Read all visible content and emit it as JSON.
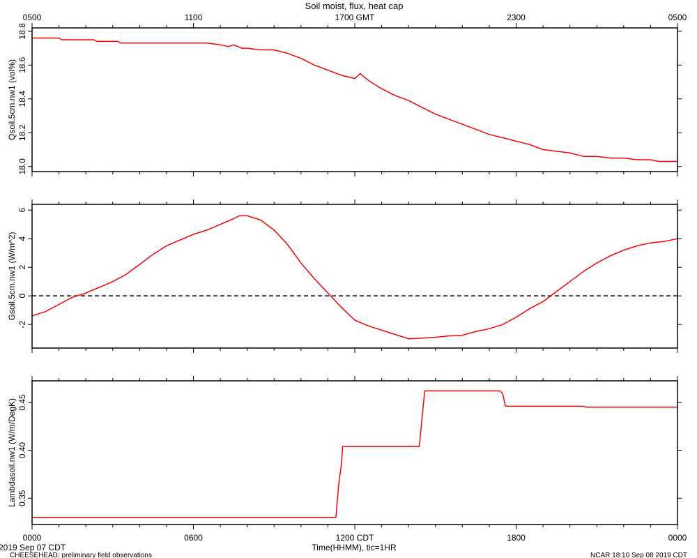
{
  "header": {
    "title": "Soil moist, flux, heat cap",
    "top_ticks": [
      "0500",
      "1100",
      "1700 GMT",
      "2300",
      "0500"
    ]
  },
  "bottom_axis": {
    "ticks": [
      "0000",
      "0600",
      "1200 CDT",
      "1800",
      "0000"
    ],
    "xlabel": "Time(HHMM), tic=1HR"
  },
  "footer": {
    "date": "2019 Sep 07 CDT",
    "project": "CHEESEHEAD: preliminary field observations",
    "credit": "NCAR 18:10 Sep 08 2019 CDT"
  },
  "colors": {
    "series": "#ff0000",
    "axis": "#000000",
    "background": "#ffffff"
  },
  "chart_data": [
    {
      "type": "line",
      "ylabel": "Qsoil.5cm.nw1 (vol%)",
      "ylim": [
        17.97,
        18.82
      ],
      "yticks": [
        18.0,
        18.2,
        18.4,
        18.6,
        18.8
      ],
      "ytick_labels": [
        "18.0",
        "18.2",
        "18.4",
        "18.6",
        "18.8"
      ],
      "xlim": [
        0,
        24
      ],
      "x": [
        0,
        1.0,
        1.1,
        2.3,
        2.4,
        3.2,
        3.3,
        4.2,
        4.3,
        5.0,
        6.0,
        6.5,
        7.0,
        7.3,
        7.5,
        7.8,
        8.0,
        8.5,
        9.0,
        9.5,
        10.0,
        10.5,
        11.0,
        11.5,
        12.0,
        12.2,
        12.5,
        13.0,
        13.5,
        14.0,
        14.5,
        15.0,
        15.5,
        16.0,
        16.5,
        17.0,
        17.5,
        18.0,
        18.5,
        19.0,
        19.5,
        20.0,
        20.5,
        21.0,
        21.5,
        22.0,
        22.5,
        23.0,
        23.3,
        24.0
      ],
      "y": [
        18.76,
        18.76,
        18.75,
        18.75,
        18.74,
        18.74,
        18.73,
        18.73,
        18.73,
        18.73,
        18.73,
        18.73,
        18.72,
        18.71,
        18.72,
        18.7,
        18.7,
        18.69,
        18.69,
        18.67,
        18.64,
        18.6,
        18.57,
        18.54,
        18.52,
        18.55,
        18.51,
        18.46,
        18.42,
        18.39,
        18.35,
        18.31,
        18.28,
        18.25,
        18.22,
        18.19,
        18.17,
        18.15,
        18.13,
        18.1,
        18.09,
        18.08,
        18.06,
        18.06,
        18.05,
        18.05,
        18.04,
        18.04,
        18.03,
        18.03
      ]
    },
    {
      "type": "line",
      "ylabel": "Gsoil.5cm.nw1 (W/m^2)",
      "ylim": [
        -3.65,
        6.4
      ],
      "yticks": [
        -2,
        0,
        2,
        4,
        6
      ],
      "ytick_labels": [
        "-2",
        "0",
        "2",
        "4",
        "6"
      ],
      "reference_line": {
        "y": 0,
        "style": "dashed"
      },
      "xlim": [
        0,
        24
      ],
      "x": [
        0,
        0.5,
        1.0,
        1.5,
        2.0,
        2.5,
        3.0,
        3.5,
        4.0,
        4.5,
        5.0,
        5.5,
        6.0,
        6.5,
        7.0,
        7.5,
        7.7,
        8.0,
        8.5,
        9.0,
        9.5,
        10.0,
        10.5,
        11.0,
        11.5,
        12.0,
        12.5,
        13.0,
        13.5,
        14.0,
        14.5,
        15.0,
        15.5,
        16.0,
        16.5,
        17.0,
        17.5,
        18.0,
        18.5,
        19.0,
        19.5,
        20.0,
        20.5,
        21.0,
        21.5,
        22.0,
        22.5,
        23.0,
        23.5,
        24.0
      ],
      "y": [
        -1.4,
        -1.1,
        -0.6,
        -0.1,
        0.2,
        0.6,
        1.0,
        1.5,
        2.2,
        2.9,
        3.5,
        3.9,
        4.3,
        4.6,
        5.0,
        5.4,
        5.6,
        5.6,
        5.3,
        4.6,
        3.6,
        2.3,
        1.2,
        0.2,
        -0.8,
        -1.7,
        -2.1,
        -2.4,
        -2.7,
        -3.0,
        -2.95,
        -2.9,
        -2.8,
        -2.75,
        -2.5,
        -2.3,
        -2.0,
        -1.5,
        -0.9,
        -0.4,
        0.3,
        1.0,
        1.7,
        2.3,
        2.8,
        3.2,
        3.5,
        3.7,
        3.8,
        4.0
      ]
    },
    {
      "type": "line",
      "ylabel": "Lambdasoil.nw1 (W/m/DegK)",
      "ylim": [
        0.3225,
        0.4725
      ],
      "yticks": [
        0.35,
        0.4,
        0.45
      ],
      "ytick_labels": [
        "0.35",
        "0.40",
        "0.45"
      ],
      "xlim": [
        0,
        24
      ],
      "x": [
        0,
        11.3,
        11.4,
        11.5,
        11.55,
        14.4,
        14.6,
        17.4,
        17.5,
        17.6,
        20.5,
        20.6,
        24.0
      ],
      "y": [
        0.33,
        0.33,
        0.364,
        0.385,
        0.404,
        0.404,
        0.462,
        0.462,
        0.459,
        0.446,
        0.446,
        0.445,
        0.445
      ]
    }
  ]
}
